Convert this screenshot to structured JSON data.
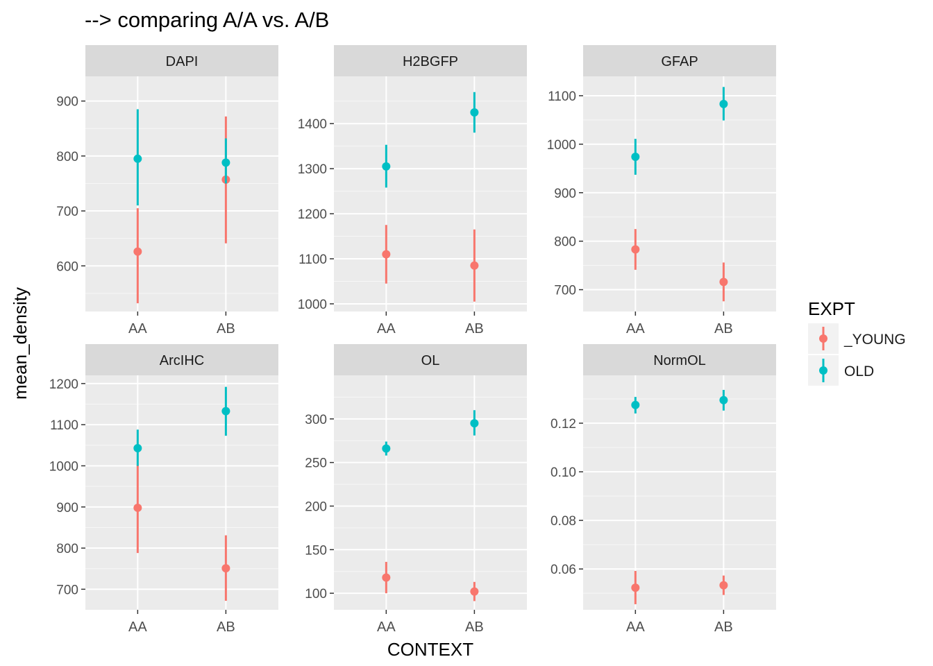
{
  "title": "--> comparing A/A vs. A/B",
  "colors": {
    "panel_bg": "#ebebeb",
    "strip_bg": "#d9d9d9",
    "grid": "#ffffff",
    "text": "#4d4d4d",
    "young": "#f8766d",
    "old": "#00bfc4"
  },
  "chart_data": {
    "type": "scatter",
    "subtype": "pointrange",
    "xlabel": "CONTEXT",
    "ylabel": "mean_density",
    "categories": [
      "AA",
      "AB"
    ],
    "legend": {
      "title": "EXPT",
      "placement": "right",
      "entries": [
        {
          "key": "young",
          "label": "_YOUNG"
        },
        {
          "key": "old",
          "label": "OLD"
        }
      ]
    },
    "grid": true,
    "panels": [
      {
        "name": "DAPI",
        "ylim": [
          517,
          945
        ],
        "yticks": [
          600,
          700,
          800,
          900
        ],
        "series": {
          "young": [
            {
              "x": "AA",
              "y": 626,
              "ymin": 532,
              "ymax": 705
            },
            {
              "x": "AB",
              "y": 757,
              "ymin": 641,
              "ymax": 872
            }
          ],
          "old": [
            {
              "x": "AA",
              "y": 795,
              "ymin": 710,
              "ymax": 885
            },
            {
              "x": "AB",
              "y": 788,
              "ymin": 750,
              "ymax": 832
            }
          ]
        }
      },
      {
        "name": "H2BGFP",
        "ylim": [
          983,
          1505
        ],
        "yticks": [
          1000,
          1100,
          1200,
          1300,
          1400
        ],
        "series": {
          "young": [
            {
              "x": "AA",
              "y": 1110,
              "ymin": 1045,
              "ymax": 1175
            },
            {
              "x": "AB",
              "y": 1085,
              "ymin": 1005,
              "ymax": 1165
            }
          ],
          "old": [
            {
              "x": "AA",
              "y": 1305,
              "ymin": 1258,
              "ymax": 1353
            },
            {
              "x": "AB",
              "y": 1425,
              "ymin": 1380,
              "ymax": 1470
            }
          ]
        }
      },
      {
        "name": "GFAP",
        "ylim": [
          655,
          1140
        ],
        "yticks": [
          700,
          800,
          900,
          1000,
          1100
        ],
        "series": {
          "young": [
            {
              "x": "AA",
              "y": 783,
              "ymin": 741,
              "ymax": 825
            },
            {
              "x": "AB",
              "y": 716,
              "ymin": 676,
              "ymax": 756
            }
          ],
          "old": [
            {
              "x": "AA",
              "y": 974,
              "ymin": 937,
              "ymax": 1011
            },
            {
              "x": "AB",
              "y": 1083,
              "ymin": 1049,
              "ymax": 1118
            }
          ]
        }
      },
      {
        "name": "ArcIHC",
        "ylim": [
          650,
          1220
        ],
        "yticks": [
          700,
          800,
          900,
          1000,
          1100,
          1200
        ],
        "series": {
          "young": [
            {
              "x": "AA",
              "y": 898,
              "ymin": 788,
              "ymax": 1003
            },
            {
              "x": "AB",
              "y": 751,
              "ymin": 672,
              "ymax": 831
            }
          ],
          "old": [
            {
              "x": "AA",
              "y": 1043,
              "ymin": 1000,
              "ymax": 1088
            },
            {
              "x": "AB",
              "y": 1133,
              "ymin": 1073,
              "ymax": 1192
            }
          ]
        }
      },
      {
        "name": "OL",
        "ylim": [
          81,
          350
        ],
        "yticks": [
          100,
          150,
          200,
          250,
          300
        ],
        "series": {
          "young": [
            {
              "x": "AA",
              "y": 118,
              "ymin": 100,
              "ymax": 136
            },
            {
              "x": "AB",
              "y": 102,
              "ymin": 91,
              "ymax": 113
            }
          ],
          "old": [
            {
              "x": "AA",
              "y": 266,
              "ymin": 258,
              "ymax": 274
            },
            {
              "x": "AB",
              "y": 295,
              "ymin": 281,
              "ymax": 310
            }
          ]
        }
      },
      {
        "name": "NormOL",
        "ylim": [
          0.0432,
          0.1397
        ],
        "yticks": [
          0.06,
          0.08,
          0.1,
          0.12
        ],
        "ytick_labels": [
          "0.06",
          "0.08",
          "0.10",
          "0.12"
        ],
        "series": {
          "young": [
            {
              "x": "AA",
              "y": 0.0523,
              "ymin": 0.0455,
              "ymax": 0.0592
            },
            {
              "x": "AB",
              "y": 0.0533,
              "ymin": 0.0493,
              "ymax": 0.0573
            }
          ],
          "old": [
            {
              "x": "AA",
              "y": 0.1275,
              "ymin": 0.124,
              "ymax": 0.1308
            },
            {
              "x": "AB",
              "y": 0.1295,
              "ymin": 0.1252,
              "ymax": 0.1337
            }
          ]
        }
      }
    ]
  }
}
